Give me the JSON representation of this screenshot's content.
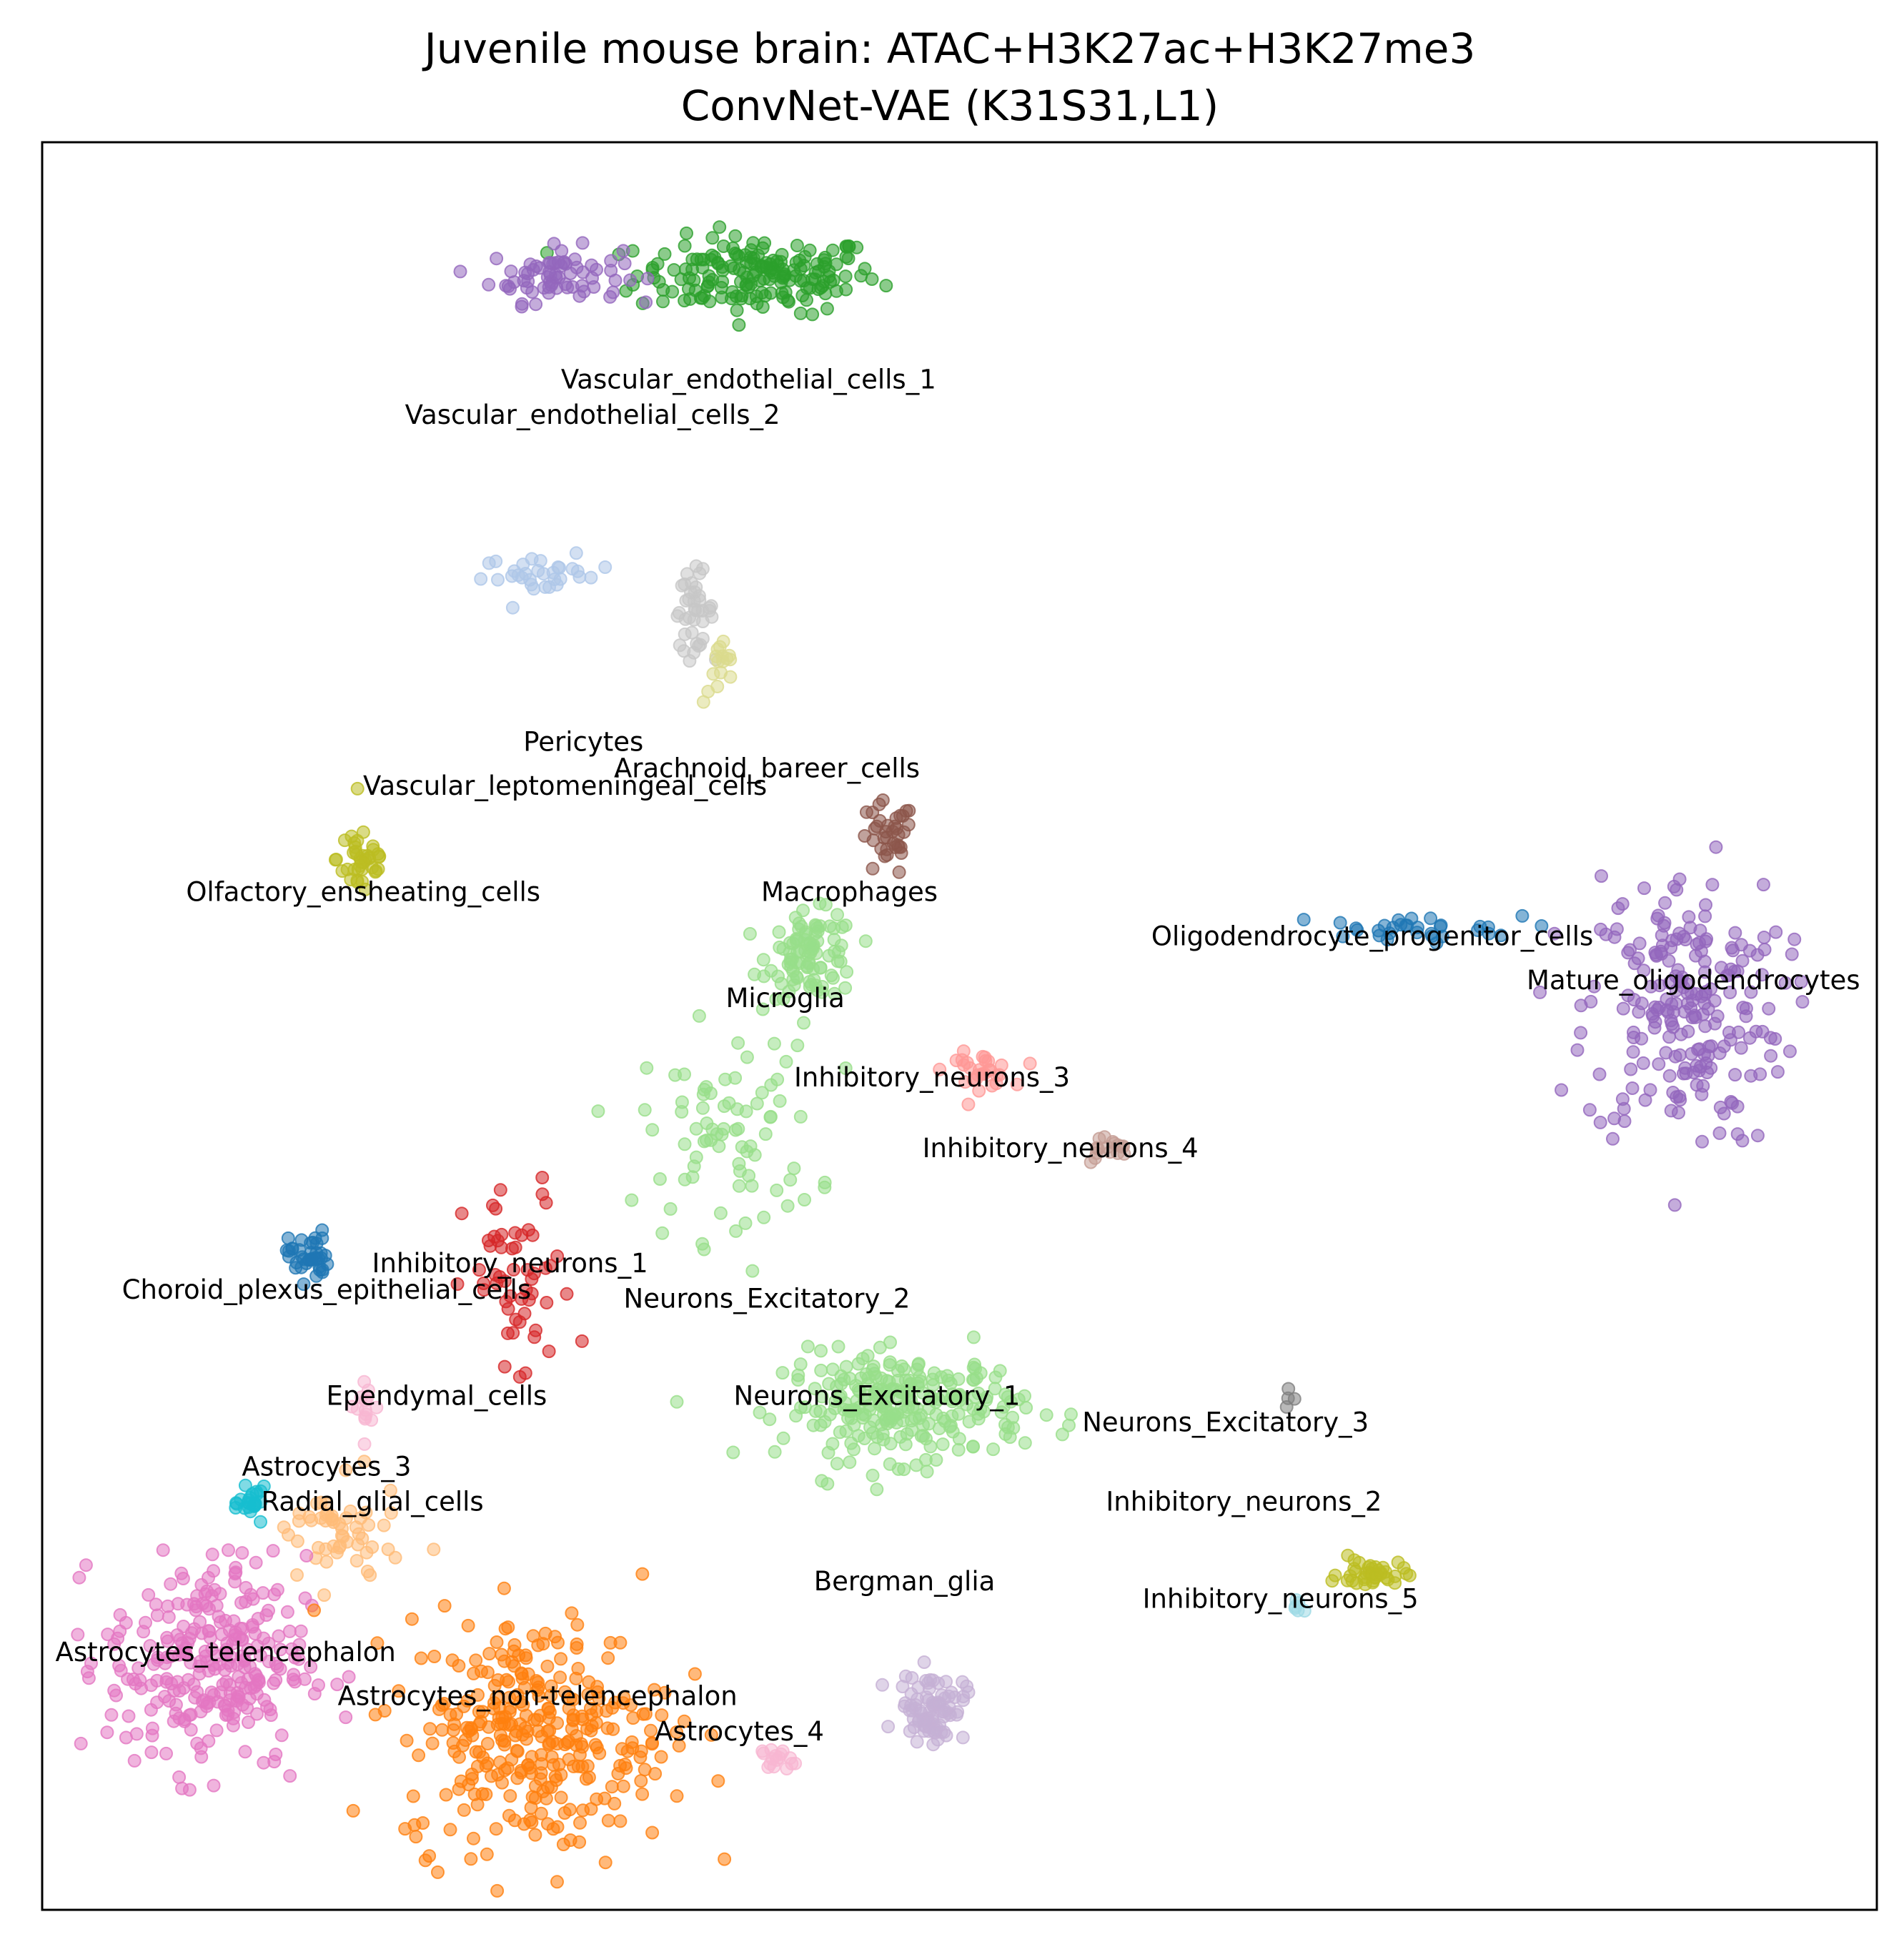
{
  "chart_data": {
    "type": "scatter",
    "title": "Juvenile mouse brain: ATAC+H3K27ac+H3K27me3",
    "subtitle": "ConvNet-VAE (K31S31,L1)",
    "xlim": [
      0,
      100
    ],
    "ylim": [
      0,
      100
    ],
    "axes_ticks": false,
    "grid": false,
    "legend": "none",
    "clusters": [
      {
        "name": "Vascular_endothelial_cells_1",
        "color": "#2ca02c",
        "center": [
          39,
          92.5
        ],
        "spread": [
          5.5,
          1.8
        ],
        "count": 180,
        "label_at": [
          38.5,
          86.5
        ]
      },
      {
        "name": "Vascular_endothelial_cells_2",
        "color": "#9467bd",
        "center": [
          28,
          92.5
        ],
        "spread": [
          3.0,
          1.3
        ],
        "count": 70,
        "label_at": [
          30,
          84.5
        ]
      },
      {
        "name": "Vascular_leptomeningeal_cells",
        "color": "#aec7e8",
        "center": [
          27.5,
          75.5
        ],
        "spread": [
          3.0,
          0.9
        ],
        "count": 32,
        "label_at": [
          28.5,
          63.5
        ]
      },
      {
        "name": "Pericytes",
        "color": "#c7c7c7",
        "center": [
          35.5,
          73.5
        ],
        "spread": [
          0.9,
          1.8
        ],
        "count": 40,
        "label_at": [
          29.5,
          66
        ]
      },
      {
        "name": "Arachnoid_bareer_cells",
        "color": "#dbdb8d",
        "center": [
          37,
          70
        ],
        "spread": [
          0.8,
          1.5
        ],
        "count": 16,
        "label_at": [
          39.5,
          64.5
        ]
      },
      {
        "name": "Olfactory_ensheating_cells",
        "color": "#bcbd22",
        "center": [
          17.5,
          59.5
        ],
        "spread": [
          1.2,
          2.0
        ],
        "count": 40,
        "label_at": [
          17.5,
          57.5
        ]
      },
      {
        "name": "Macrophages",
        "color": "#8c564b",
        "center": [
          46,
          60.5
        ],
        "spread": [
          1.3,
          1.8
        ],
        "count": 36,
        "label_at": [
          44,
          57.5
        ]
      },
      {
        "name": "Microglia",
        "color": "#98df8a",
        "center": [
          42,
          54
        ],
        "spread": [
          2.0,
          2.0
        ],
        "count": 95,
        "label_at": [
          40.5,
          51.5
        ]
      },
      {
        "name": "Inhibitory_neurons_3",
        "color": "#ff9896",
        "center": [
          51,
          47.5
        ],
        "spread": [
          1.5,
          0.8
        ],
        "count": 30,
        "label_at": [
          48.5,
          47
        ]
      },
      {
        "name": "Inhibitory_neurons_4",
        "color": "#c49c94",
        "center": [
          58,
          43
        ],
        "spread": [
          1.2,
          0.7
        ],
        "count": 16,
        "label_at": [
          55.5,
          43
        ]
      },
      {
        "name": "Oligodendrocyte_progenitor_cells",
        "color": "#1f77b4",
        "center": [
          74,
          55.5
        ],
        "spread": [
          5.5,
          0.6
        ],
        "count": 32,
        "label_at": [
          72.5,
          55
        ]
      },
      {
        "name": "Mature_oligodendrocytes",
        "color": "#9467bd",
        "center": [
          89.5,
          51
        ],
        "spread": [
          4.5,
          6.5
        ],
        "count": 220,
        "label_at": [
          90,
          52.5
        ]
      },
      {
        "name": "Choroid_plexus_epithelial_cells",
        "color": "#1f77b4",
        "center": [
          14.5,
          37
        ],
        "spread": [
          0.9,
          1.2
        ],
        "count": 40,
        "label_at": [
          15.5,
          35
        ]
      },
      {
        "name": "Inhibitory_neurons_1",
        "color": "#d62728",
        "center": [
          26,
          35
        ],
        "spread": [
          2.5,
          5.0
        ],
        "count": 55,
        "label_at": [
          25.5,
          36.5
        ]
      },
      {
        "name": "Neurons_Excitatory_2",
        "color": "#98df8a",
        "center": [
          37.5,
          44
        ],
        "spread": [
          4.0,
          5.0
        ],
        "count": 80,
        "label_at": [
          39.5,
          34.5
        ]
      },
      {
        "name": "Ependymal_cells",
        "color": "#f7b6d2",
        "center": [
          17.5,
          28.5
        ],
        "spread": [
          0.8,
          1.5
        ],
        "count": 14,
        "label_at": [
          21.5,
          29
        ]
      },
      {
        "name": "Neurons_Excitatory_1",
        "color": "#98df8a",
        "center": [
          47,
          28.5
        ],
        "spread": [
          5.5,
          2.5
        ],
        "count": 260,
        "label_at": [
          45.5,
          29
        ]
      },
      {
        "name": "Neurons_Excitatory_3",
        "color": "#7f7f7f",
        "center": [
          68,
          28.5
        ],
        "spread": [
          0.3,
          0.6
        ],
        "count": 4,
        "label_at": [
          64.5,
          27.5
        ]
      },
      {
        "name": "Astrocytes_3",
        "color": "#17becf",
        "center": [
          11.5,
          23
        ],
        "spread": [
          0.6,
          0.7
        ],
        "count": 24,
        "label_at": [
          15.5,
          25
        ]
      },
      {
        "name": "Radial_glial_cells",
        "color": "#ffbb78",
        "center": [
          16,
          21
        ],
        "spread": [
          3.0,
          2.5
        ],
        "count": 55,
        "label_at": [
          18,
          23
        ]
      },
      {
        "name": "Inhibitory_neurons_2",
        "color": "#bcbd22",
        "center": [
          72.5,
          19
        ],
        "spread": [
          1.5,
          0.7
        ],
        "count": 40,
        "label_at": [
          65.5,
          23
        ]
      },
      {
        "name": "Bergman_glia",
        "color": "#c5b0d5",
        "center": [
          48.5,
          11.5
        ],
        "spread": [
          1.5,
          1.6
        ],
        "count": 85,
        "label_at": [
          47,
          18.5
        ]
      },
      {
        "name": "Inhibitory_neurons_5",
        "color": "#9edae5",
        "center": [
          68.5,
          17
        ],
        "spread": [
          0.4,
          0.6
        ],
        "count": 6,
        "label_at": [
          67.5,
          17.5
        ]
      },
      {
        "name": "Astrocytes_telencephalon",
        "color": "#e377c2",
        "center": [
          9,
          14
        ],
        "spread": [
          4.5,
          5.0
        ],
        "count": 280,
        "label_at": [
          10,
          14.5
        ]
      },
      {
        "name": "Astrocytes_non-telencephalon",
        "color": "#ff7f0e",
        "center": [
          27,
          10
        ],
        "spread": [
          6.0,
          5.5
        ],
        "count": 320,
        "label_at": [
          27,
          12
        ]
      },
      {
        "name": "Astrocytes_4",
        "color": "#f7b6d2",
        "center": [
          40,
          8.5
        ],
        "spread": [
          0.7,
          0.6
        ],
        "count": 16,
        "label_at": [
          38,
          10
        ]
      }
    ]
  }
}
